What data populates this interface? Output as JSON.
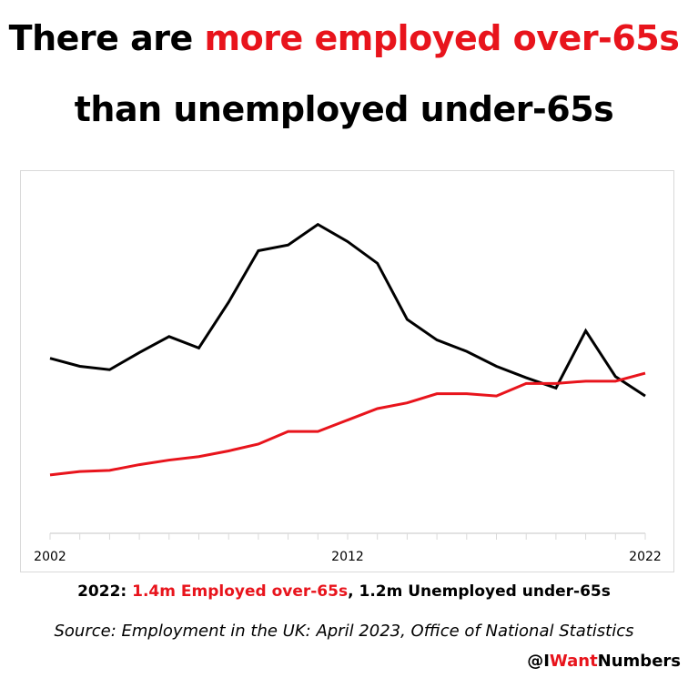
{
  "title": {
    "line1_prefix": "There are ",
    "line1_highlight": "more employed over-65s",
    "line2": "than unemployed under-65s"
  },
  "summary": {
    "year_label": "2022: ",
    "employed_text": "1.4m Employed over-65s",
    "separator": ", ",
    "unemployed_text": "1.2m Unemployed under-65s"
  },
  "source": "Source: Employment in the UK: April 2023, Office of National Statistics",
  "handle": {
    "prefix": "@I",
    "highlight": "Want",
    "suffix": "Numbers"
  },
  "colors": {
    "accent": "#e8141c",
    "text": "#000000"
  },
  "chart_data": {
    "type": "line",
    "title": "",
    "xlabel": "",
    "ylabel": "",
    "x": [
      2002,
      2003,
      2004,
      2005,
      2006,
      2007,
      2008,
      2009,
      2010,
      2011,
      2012,
      2013,
      2014,
      2015,
      2016,
      2017,
      2018,
      2019,
      2020,
      2021,
      2022
    ],
    "xticklabels": [
      "2002",
      "2012",
      "2022"
    ],
    "ylim": [
      0,
      3.2
    ],
    "units": "millions",
    "series": [
      {
        "name": "Unemployed under-65s",
        "color": "#000000",
        "values": [
          1.53,
          1.46,
          1.43,
          1.58,
          1.72,
          1.62,
          2.02,
          2.47,
          2.52,
          2.7,
          2.55,
          2.36,
          1.87,
          1.69,
          1.59,
          1.46,
          1.36,
          1.27,
          1.77,
          1.37,
          1.2
        ]
      },
      {
        "name": "Employed over-65s",
        "color": "#e8141c",
        "values": [
          0.51,
          0.54,
          0.55,
          0.6,
          0.64,
          0.67,
          0.72,
          0.78,
          0.89,
          0.89,
          0.99,
          1.09,
          1.14,
          1.22,
          1.22,
          1.2,
          1.31,
          1.31,
          1.33,
          1.33,
          1.4
        ]
      }
    ],
    "grid": false,
    "legend": "none"
  }
}
